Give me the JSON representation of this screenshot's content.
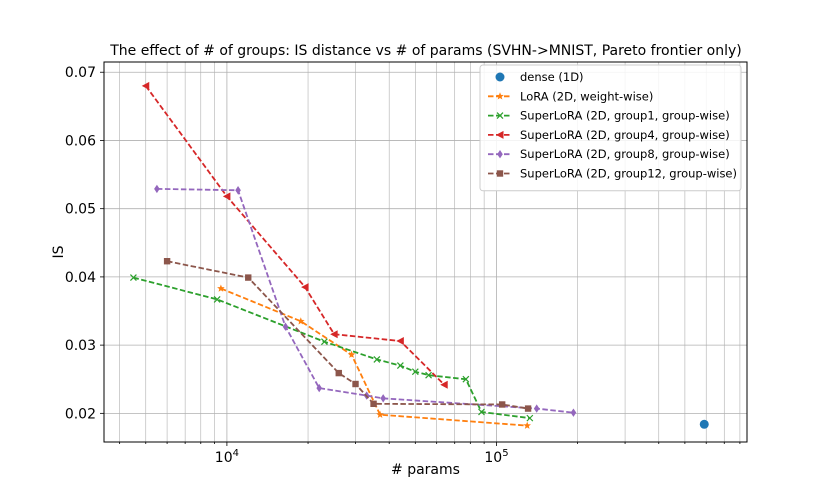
{
  "chart_data": {
    "type": "line",
    "title": "The effect of # of groups: IS distance vs # of params (SVHN->MNIST, Pareto frontier only)",
    "xlabel": "# params",
    "ylabel": "IS",
    "xscale": "log",
    "xlim": [
      3500,
      850000
    ],
    "ylim": [
      0.0158,
      0.0715
    ],
    "yticks": [
      0.02,
      0.03,
      0.04,
      0.05,
      0.06,
      0.07
    ],
    "ytick_labels": [
      "0.02",
      "0.03",
      "0.04",
      "0.05",
      "0.06",
      "0.07"
    ],
    "xticks": [
      10000,
      100000
    ],
    "xtick_labels": [
      {
        "base": "10",
        "exp": "4"
      },
      {
        "base": "10",
        "exp": "5"
      }
    ],
    "grid": true,
    "legend_position": "top-right",
    "series": [
      {
        "name": "dense (1D)",
        "color": "#1f77b4",
        "marker": "circle",
        "line": false,
        "x": [
          590000
        ],
        "y": [
          0.0184
        ]
      },
      {
        "name": "LoRA (2D, weight-wise)",
        "color": "#ff7f0e",
        "marker": "star",
        "line": true,
        "x": [
          9500,
          18800,
          29000,
          37000,
          130000
        ],
        "y": [
          0.0383,
          0.0335,
          0.0286,
          0.0198,
          0.0182
        ]
      },
      {
        "name": "SuperLoRA (2D, group1, group-wise)",
        "color": "#2ca02c",
        "marker": "x",
        "line": true,
        "x": [
          4500,
          9200,
          23000,
          36000,
          44000,
          50000,
          56000,
          77000,
          88000,
          133000
        ],
        "y": [
          0.0399,
          0.0367,
          0.0305,
          0.0279,
          0.027,
          0.0261,
          0.0256,
          0.025,
          0.0202,
          0.0193
        ]
      },
      {
        "name": "SuperLoRA (2D, group4, group-wise)",
        "color": "#d62728",
        "marker": "triangle-left",
        "line": true,
        "x": [
          5000,
          10000,
          19500,
          25000,
          44000,
          64000
        ],
        "y": [
          0.068,
          0.0518,
          0.0385,
          0.0316,
          0.0306,
          0.0242
        ]
      },
      {
        "name": "SuperLoRA (2D, group8, group-wise)",
        "color": "#9467bd",
        "marker": "diamond",
        "line": true,
        "x": [
          5500,
          11000,
          16500,
          22000,
          33000,
          38000,
          141000,
          193000
        ],
        "y": [
          0.0529,
          0.0527,
          0.0327,
          0.0237,
          0.0226,
          0.0222,
          0.0207,
          0.0201
        ]
      },
      {
        "name": "SuperLoRA (2D, group12, group-wise)",
        "color": "#8c564b",
        "marker": "square",
        "line": true,
        "x": [
          6000,
          12000,
          26000,
          30000,
          35000,
          105000,
          131000
        ],
        "y": [
          0.0423,
          0.0399,
          0.0259,
          0.0243,
          0.0214,
          0.0213,
          0.0207
        ]
      }
    ]
  }
}
